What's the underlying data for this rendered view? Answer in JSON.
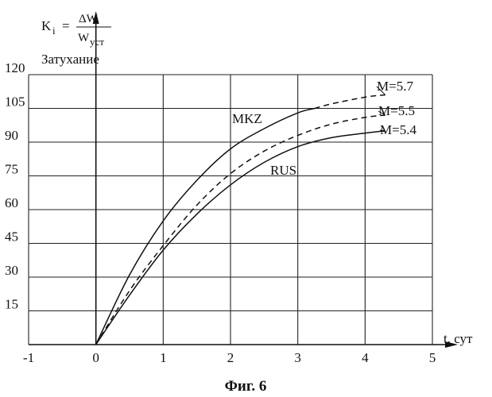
{
  "chart_data": {
    "type": "line",
    "xlabel": "t, сут",
    "ylabel": {
      "symbol": "K",
      "subscript": "i",
      "equals": "=",
      "numerator": "ΔW",
      "denominator": "W",
      "denominator_subscript": "уст",
      "secondary": "Затухание"
    },
    "caption": "Фиг. 6",
    "xlim": [
      -1,
      5
    ],
    "ylim": [
      0,
      120
    ],
    "x_ticks": [
      -1,
      0,
      1,
      2,
      3,
      4,
      5
    ],
    "y_ticks": [
      15,
      30,
      45,
      60,
      75,
      90,
      105,
      120
    ],
    "grid": true,
    "series": [
      {
        "name": "MKZ",
        "label": "M=5.7",
        "x": [
          0,
          0.5,
          1,
          1.5,
          2,
          2.5,
          3,
          3.25,
          3.5,
          4,
          4.3
        ],
        "y": [
          0,
          31,
          55,
          73,
          87,
          96,
          103,
          105,
          107,
          110,
          111
        ],
        "solid_until_x": 3.25
      },
      {
        "name": "",
        "label": "M=5.5",
        "x": [
          0,
          0.5,
          1,
          1.5,
          2,
          2.5,
          3,
          3.5,
          4,
          4.3
        ],
        "y": [
          0,
          24,
          44,
          62,
          76,
          86,
          93,
          98,
          101,
          102
        ],
        "solid_until_x": 0
      },
      {
        "name": "RUS",
        "label": "M=5.4",
        "x": [
          0,
          0.5,
          1,
          1.5,
          2,
          2.5,
          3,
          3.5,
          4,
          4.3
        ],
        "y": [
          0,
          22,
          42,
          58,
          71,
          81,
          88,
          92,
          94,
          95
        ],
        "solid_until_x": 4.3
      }
    ]
  }
}
